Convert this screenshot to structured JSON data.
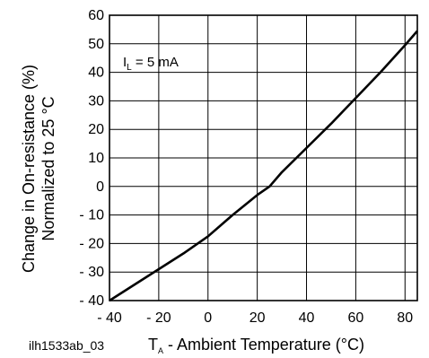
{
  "figure_id": "ilh1533ab_03",
  "chart_data": {
    "type": "line",
    "title": "",
    "xlabel": {
      "symbol": "T",
      "subscript": "A",
      "rest": " - Ambient Temperature (°C)"
    },
    "ylabel": [
      "Change in On-resistance (%)",
      "Normalized to 25 °C"
    ],
    "xlim": [
      -40,
      85
    ],
    "ylim": [
      -40,
      60
    ],
    "x_ticks": [
      -40,
      -20,
      0,
      20,
      40,
      60,
      80
    ],
    "x_tick_labels": [
      "- 40",
      "- 20",
      "0",
      "20",
      "40",
      "60",
      "80"
    ],
    "y_ticks": [
      -40,
      -30,
      -20,
      -10,
      0,
      10,
      20,
      30,
      40,
      50,
      60
    ],
    "y_tick_labels": [
      "- 40",
      "- 30",
      "- 20",
      "- 10",
      "0",
      "10",
      "20",
      "30",
      "40",
      "50",
      "60"
    ],
    "x_grid": [
      -40,
      -20,
      0,
      20,
      40,
      60,
      80,
      85
    ],
    "y_grid": [
      -40,
      -30,
      -20,
      -10,
      0,
      10,
      20,
      30,
      40,
      50,
      60
    ],
    "grid": true,
    "annotation": {
      "symbol": "I",
      "subscript": "L",
      "rest": " = 5 mA"
    },
    "series": [
      {
        "x": [
          -40,
          -30,
          -20,
          -10,
          0,
          10,
          20,
          25,
          30,
          40,
          50,
          60,
          70,
          80,
          85
        ],
        "y": [
          -40,
          -34.5,
          -29,
          -23.5,
          -17.5,
          -10,
          -3,
          0,
          5,
          13.5,
          22,
          31,
          40,
          49.5,
          54.5
        ],
        "color": "#000000"
      }
    ]
  }
}
